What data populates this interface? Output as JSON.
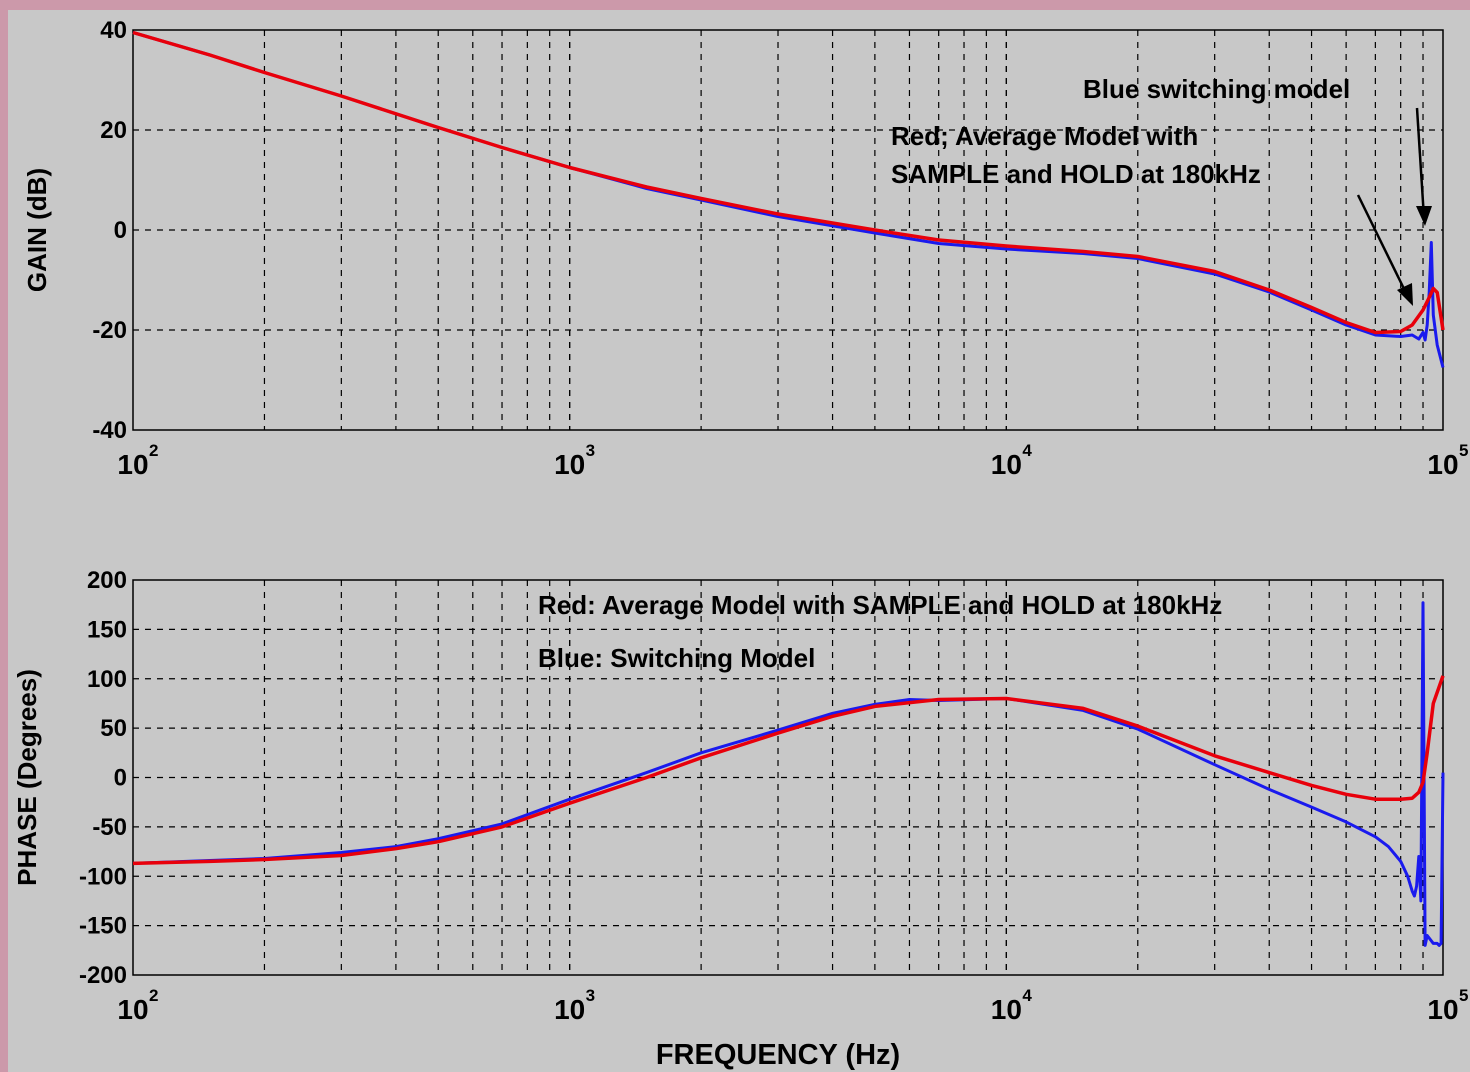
{
  "colors": {
    "background": "#c8c8c8",
    "frame": "#cc99aa",
    "red": "#e8000b",
    "blue": "#1a1aee",
    "grid": "#000000"
  },
  "chart_data": [
    {
      "type": "line",
      "xscale": "log",
      "xlim": [
        100,
        100000
      ],
      "ylim": [
        -40,
        40
      ],
      "ylabel": "GAIN (dB)",
      "xlabel": "",
      "grid": true,
      "x_ticks": [
        {
          "value": 100,
          "base": "10",
          "exp": "2"
        },
        {
          "value": 1000,
          "base": "10",
          "exp": "3"
        },
        {
          "value": 10000,
          "base": "10",
          "exp": "4"
        },
        {
          "value": 100000,
          "base": "10",
          "exp": "5"
        }
      ],
      "y_ticks": [
        "-40",
        "-20",
        "0",
        "20",
        "40"
      ],
      "annotations": [
        {
          "id": "blue",
          "text": "Blue switching model"
        },
        {
          "id": "red1",
          "text": "Red; Average Model with"
        },
        {
          "id": "red2",
          "text": "SAMPLE and HOLD at 180kHz"
        }
      ],
      "series": [
        {
          "color": "red",
          "x": [
            100,
            150,
            200,
            300,
            500,
            700,
            1000,
            1500,
            2000,
            3000,
            5000,
            7000,
            10000,
            15000,
            20000,
            30000,
            40000,
            50000,
            60000,
            70000,
            80000,
            85000,
            90000,
            93000,
            95000,
            97000,
            100000
          ],
          "y": [
            39.5,
            35,
            31.5,
            26.8,
            20.5,
            16.5,
            12.5,
            8.6,
            6.3,
            3.2,
            0,
            -2,
            -3.2,
            -4.3,
            -5.3,
            -8.3,
            -12,
            -15.5,
            -18.5,
            -20.5,
            -20.3,
            -19,
            -16,
            -13.5,
            -11.7,
            -12.5,
            -20
          ]
        },
        {
          "color": "blue",
          "x": [
            100,
            150,
            200,
            300,
            500,
            700,
            1000,
            1500,
            2000,
            3000,
            5000,
            7000,
            10000,
            15000,
            20000,
            30000,
            40000,
            50000,
            60000,
            70000,
            80000,
            85000,
            88000,
            90000,
            91000,
            92000,
            93000,
            94000,
            95000,
            97000,
            100000
          ],
          "y": [
            39.5,
            35,
            31.5,
            26.8,
            20.5,
            16.5,
            12.5,
            8.3,
            6,
            2.7,
            -0.6,
            -2.7,
            -3.8,
            -4.7,
            -5.7,
            -8.8,
            -12.4,
            -16,
            -19,
            -21,
            -21.3,
            -21,
            -21.8,
            -20.5,
            -22,
            -19,
            -12.5,
            -2.5,
            -17,
            -23,
            -27.5
          ]
        }
      ]
    },
    {
      "type": "line",
      "xscale": "log",
      "xlim": [
        100,
        100000
      ],
      "ylim": [
        -200,
        200
      ],
      "ylabel": "PHASE (Degrees)",
      "xlabel": "FREQUENCY (Hz)",
      "grid": true,
      "x_ticks": [
        {
          "value": 100,
          "base": "10",
          "exp": "2"
        },
        {
          "value": 1000,
          "base": "10",
          "exp": "3"
        },
        {
          "value": 10000,
          "base": "10",
          "exp": "4"
        },
        {
          "value": 100000,
          "base": "10",
          "exp": "5"
        }
      ],
      "y_ticks": [
        "-200",
        "-150",
        "-100",
        "-50",
        "0",
        "50",
        "100",
        "150",
        "200"
      ],
      "annotations": [
        {
          "id": "red",
          "text": "Red: Average Model with SAMPLE and HOLD at 180kHz"
        },
        {
          "id": "blue",
          "text": "Blue: Switching Model"
        }
      ],
      "series": [
        {
          "color": "red",
          "x": [
            100,
            150,
            200,
            300,
            400,
            500,
            700,
            1000,
            1500,
            2000,
            3000,
            4000,
            5000,
            7000,
            10000,
            15000,
            20000,
            30000,
            40000,
            50000,
            60000,
            70000,
            80000,
            85000,
            88000,
            90000,
            92000,
            95000,
            100000
          ],
          "y": [
            -87,
            -85,
            -83,
            -79,
            -72,
            -65,
            -50,
            -26,
            0,
            20,
            45,
            62,
            72,
            79,
            80,
            70,
            52,
            22,
            5,
            -8,
            -17,
            -22,
            -22,
            -21,
            -15,
            -5,
            25,
            75,
            103
          ]
        },
        {
          "color": "blue",
          "x": [
            100,
            150,
            200,
            300,
            400,
            500,
            700,
            1000,
            1500,
            2000,
            3000,
            4000,
            5000,
            6000,
            7000,
            10000,
            15000,
            20000,
            30000,
            40000,
            50000,
            60000,
            70000,
            75000,
            80000,
            83000,
            85000,
            86000,
            87000,
            88000,
            89000,
            90000,
            91000,
            92000,
            95000,
            97000,
            98000,
            99000,
            100000
          ],
          "y": [
            -87,
            -84,
            -82,
            -76,
            -70,
            -62,
            -47,
            -22,
            5,
            25,
            48,
            65,
            74,
            79,
            78,
            80,
            68,
            49,
            13,
            -12,
            -30,
            -45,
            -60,
            -70,
            -85,
            -100,
            -115,
            -120,
            -110,
            -80,
            -125,
            177,
            -170,
            -160,
            -168,
            -168,
            -170,
            -168,
            5
          ]
        }
      ]
    }
  ]
}
